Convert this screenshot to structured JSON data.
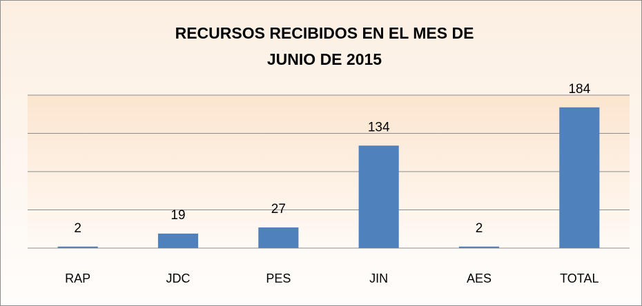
{
  "chart_data": {
    "type": "bar",
    "title": [
      "RECURSOS RECIBIDOS EN EL MES DE",
      "JUNIO DE 2015"
    ],
    "categories": [
      "RAP",
      "JDC",
      "PES",
      "JIN",
      "AES",
      "TOTAL"
    ],
    "values": [
      2,
      19,
      27,
      134,
      2,
      184
    ],
    "color": "#4f81bd",
    "ylim": [
      0,
      200
    ],
    "yticks": [
      0,
      50,
      100,
      150,
      200
    ],
    "grid": true
  }
}
